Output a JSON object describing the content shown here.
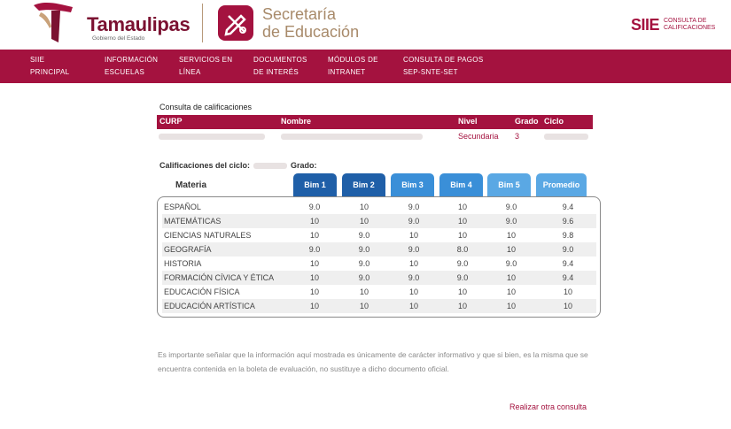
{
  "header": {
    "state_name": "Tamaulipas",
    "state_sub": "Gobierno del Estado",
    "secretaria_line1": "Secretaría",
    "secretaria_line2": "de Educación",
    "siie_big": "SIIE",
    "siie_small": "CONSULTA DE CALIFICACIONES"
  },
  "nav": {
    "items": [
      {
        "line1": "SIIE",
        "line2": "PRINCIPAL"
      },
      {
        "line1": "INFORMACIÓN",
        "line2": "ESCUELAS"
      },
      {
        "line1": "SERVICIOS EN",
        "line2": "LÍNEA"
      },
      {
        "line1": "DOCUMENTOS",
        "line2": "DE INTERÉS"
      },
      {
        "line1": "MÓDULOS DE",
        "line2": "INTRANET"
      },
      {
        "line1": "CONSULTA DE PAGOS",
        "line2": "SEP-SNTE-SET"
      }
    ]
  },
  "consulta": {
    "title": "Consulta de calificaciones",
    "headers": {
      "curp": "CURP",
      "nombre": "Nombre",
      "nivel": "Nivel",
      "grado": "Grado",
      "ciclo": "Ciclo"
    },
    "values": {
      "nivel": "Secundaria",
      "grado": "3"
    }
  },
  "grades": {
    "title_prefix": "Calificaciones del ciclo:",
    "title_suffix": "Grado:",
    "materia_header": "Materia",
    "columns": [
      "Bim 1",
      "Bim 2",
      "Bim 3",
      "Bim 4",
      "Bim 5",
      "Promedio"
    ],
    "column_colors": [
      "#1f5fa8",
      "#1f5fa8",
      "#3a8fd8",
      "#3a8fd8",
      "#5aa8e4",
      "#5aa8e4"
    ],
    "rows": [
      {
        "materia": "ESPAÑOL",
        "values": [
          "9.0",
          "10",
          "9.0",
          "10",
          "9.0",
          "9.4"
        ]
      },
      {
        "materia": "MATEMÁTICAS",
        "values": [
          "10",
          "10",
          "9.0",
          "10",
          "9.0",
          "9.6"
        ]
      },
      {
        "materia": "CIENCIAS NATURALES",
        "values": [
          "10",
          "9.0",
          "10",
          "10",
          "10",
          "9.8"
        ]
      },
      {
        "materia": "GEOGRAFÍA",
        "values": [
          "9.0",
          "9.0",
          "9.0",
          "8.0",
          "10",
          "9.0"
        ]
      },
      {
        "materia": "HISTORIA",
        "values": [
          "10",
          "9.0",
          "10",
          "9.0",
          "9.0",
          "9.4"
        ]
      },
      {
        "materia": "FORMACIÓN CÍVICA Y ÉTICA",
        "values": [
          "10",
          "9.0",
          "9.0",
          "9.0",
          "10",
          "9.4"
        ]
      },
      {
        "materia": "EDUCACIÓN FÍSICA",
        "values": [
          "10",
          "10",
          "10",
          "10",
          "10",
          "10"
        ]
      },
      {
        "materia": "EDUCACIÓN ARTÍSTICA",
        "values": [
          "10",
          "10",
          "10",
          "10",
          "10",
          "10"
        ]
      }
    ]
  },
  "footer": {
    "note": "Es importante señalar que la información aquí mostrada es únicamente de carácter informativo y que si bien, es la misma que se encuentra contenida en la boleta de evaluación, no sustituye a dicho documento oficial.",
    "again_link": "Realizar otra consulta"
  }
}
